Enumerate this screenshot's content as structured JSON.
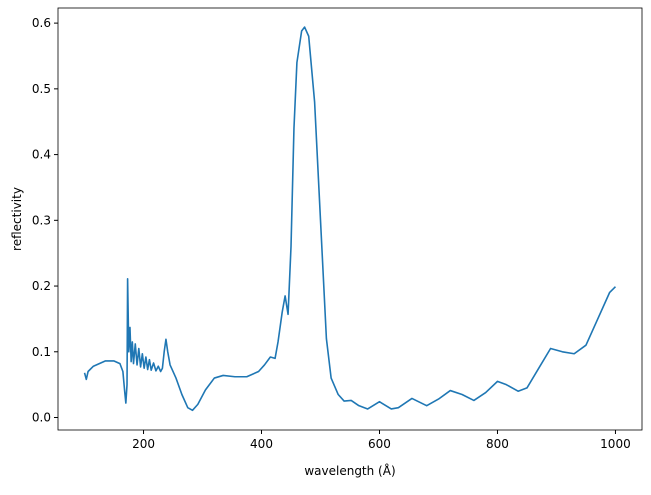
{
  "chart_data": {
    "type": "line",
    "xlabel": "wavelength (Å)",
    "ylabel": "reflectivity",
    "xlim": [
      55,
      1045
    ],
    "ylim": [
      -0.019,
      0.623
    ],
    "xticks": [
      200,
      400,
      600,
      800,
      1000
    ],
    "yticks": [
      {
        "value": 0,
        "label": "0.0"
      },
      0.1,
      0.2,
      0.3,
      0.4,
      0.5,
      0.6
    ],
    "series": [
      {
        "color": "#1f77b4",
        "x": [
          100,
          103,
          106,
          115,
          125,
          135,
          150,
          160,
          165,
          168,
          170,
          172,
          173,
          175,
          177,
          179,
          181,
          183,
          186,
          189,
          192,
          195,
          198,
          201,
          204,
          207,
          210,
          213,
          217,
          221,
          225,
          229,
          232,
          235,
          238,
          241,
          245,
          255,
          265,
          275,
          283,
          292,
          305,
          320,
          335,
          355,
          375,
          395,
          405,
          415,
          423,
          428,
          435,
          440,
          445,
          450,
          455,
          460,
          468,
          473,
          480,
          490,
          500,
          510,
          518,
          530,
          540,
          552,
          565,
          580,
          600,
          620,
          632,
          655,
          680,
          700,
          720,
          740,
          760,
          780,
          800,
          815,
          835,
          850,
          870,
          890,
          910,
          930,
          950,
          970,
          990,
          1000
        ],
        "values": [
          0.068,
          0.058,
          0.07,
          0.078,
          0.082,
          0.086,
          0.086,
          0.082,
          0.07,
          0.04,
          0.022,
          0.05,
          0.211,
          0.1,
          0.137,
          0.085,
          0.115,
          0.082,
          0.112,
          0.08,
          0.105,
          0.077,
          0.097,
          0.075,
          0.092,
          0.073,
          0.088,
          0.072,
          0.083,
          0.071,
          0.078,
          0.07,
          0.075,
          0.1,
          0.119,
          0.1,
          0.08,
          0.06,
          0.035,
          0.015,
          0.011,
          0.02,
          0.042,
          0.06,
          0.064,
          0.062,
          0.062,
          0.07,
          0.08,
          0.092,
          0.09,
          0.115,
          0.16,
          0.185,
          0.157,
          0.26,
          0.44,
          0.54,
          0.588,
          0.594,
          0.58,
          0.48,
          0.3,
          0.12,
          0.06,
          0.035,
          0.025,
          0.026,
          0.018,
          0.013,
          0.024,
          0.013,
          0.015,
          0.029,
          0.018,
          0.028,
          0.041,
          0.035,
          0.026,
          0.038,
          0.055,
          0.05,
          0.04,
          0.045,
          0.075,
          0.105,
          0.1,
          0.097,
          0.11,
          0.15,
          0.19,
          0.199
        ]
      }
    ]
  }
}
